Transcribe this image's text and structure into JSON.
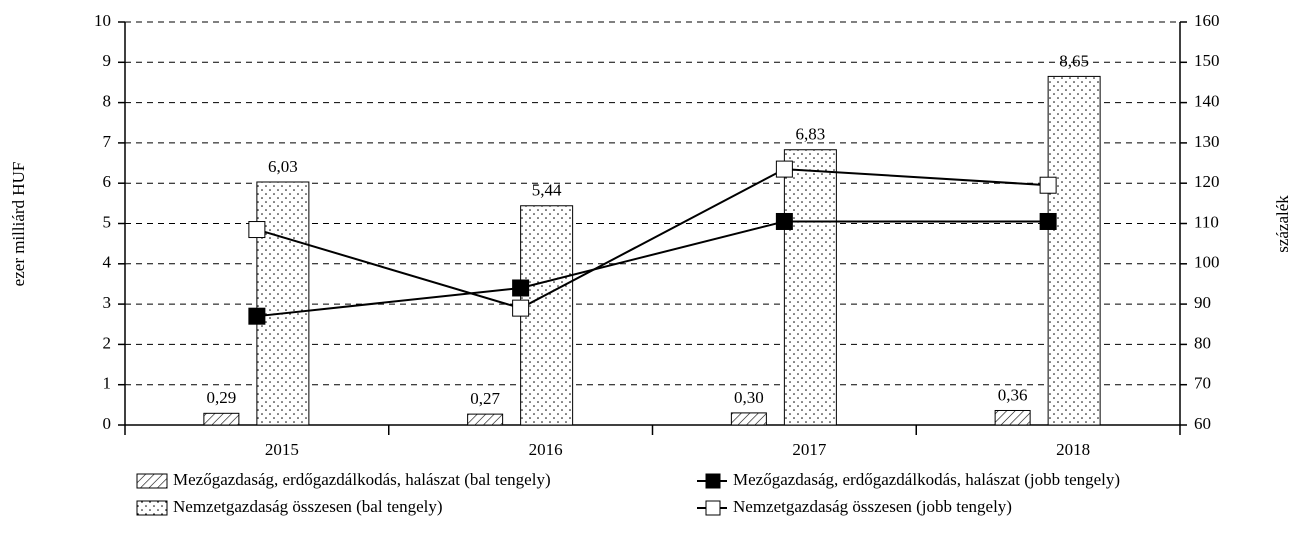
{
  "chart_data": {
    "type": "bar",
    "categories": [
      "2015",
      "2016",
      "2017",
      "2018"
    ],
    "series": [
      {
        "name": "Mezőgazdaság, erdőgazdálkodás, halászat (bal tengely)",
        "type": "bar",
        "pattern": "hatch",
        "color": "#000000",
        "values": [
          0.29,
          0.27,
          0.3,
          0.36
        ],
        "value_labels": [
          "0,29",
          "0,27",
          "0,30",
          "0,36"
        ]
      },
      {
        "name": "Nemzetgazdaság összesen (bal tengely)",
        "type": "bar",
        "pattern": "dots",
        "color": "#000000",
        "values": [
          6.03,
          5.44,
          6.83,
          8.65
        ],
        "value_labels": [
          "6,03",
          "5,44",
          "6,83",
          "8,65"
        ]
      },
      {
        "name": "Mezőgazdaság, erdőgazdálkodás, halászat (jobb tengely)",
        "type": "line",
        "axis": "y2",
        "color": "#000000",
        "values": [
          87,
          94,
          110.5,
          110.5
        ]
      },
      {
        "name": "Nemzetgazdaság összesen (jobb tengely)",
        "type": "line",
        "axis": "y2",
        "color": "#ffffff",
        "values": [
          108.5,
          89,
          123.5,
          119.5
        ]
      }
    ],
    "ylabel": "ezer milliárd HUF",
    "y2label": "százalék",
    "ylim": [
      0,
      10
    ],
    "yticks": [
      0,
      1,
      2,
      3,
      4,
      5,
      6,
      7,
      8,
      9,
      10
    ],
    "y2lim": [
      60,
      160
    ],
    "y2ticks": [
      60,
      70,
      80,
      90,
      100,
      110,
      120,
      130,
      140,
      150,
      160
    ],
    "grid": true,
    "legend": "bottom"
  }
}
